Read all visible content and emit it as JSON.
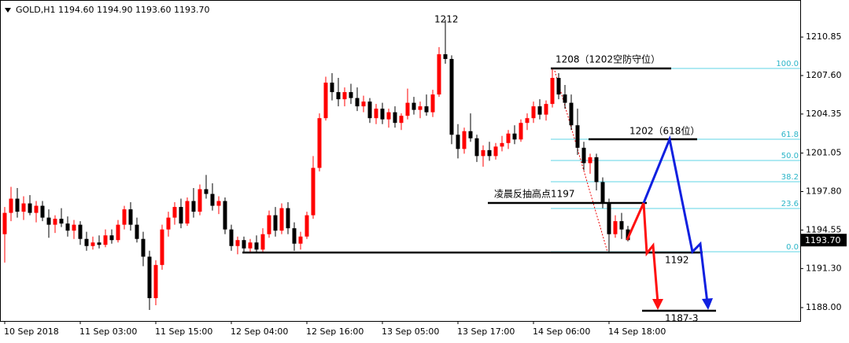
{
  "chart_data": {
    "type": "candlestick",
    "header": "GOLD,H1  1194.60 1194.90 1193.60 1193.70",
    "categories": [
      "10 Sep 2018",
      null,
      null,
      null,
      null,
      null,
      null,
      null,
      null,
      null,
      null,
      null,
      "11 Sep 03:00",
      null,
      null,
      null,
      null,
      null,
      null,
      null,
      null,
      null,
      null,
      null,
      "11 Sep 15:00",
      null,
      null,
      null,
      null,
      null,
      null,
      null,
      null,
      null,
      null,
      null,
      "12 Sep 04:00",
      null,
      null,
      null,
      null,
      null,
      null,
      null,
      null,
      null,
      null,
      null,
      "12 Sep 16:00",
      null,
      null,
      null,
      null,
      null,
      null,
      null,
      null,
      null,
      null,
      null,
      "13 Sep 05:00",
      null,
      null,
      null,
      null,
      null,
      null,
      null,
      null,
      null,
      null,
      null,
      "13 Sep 17:00",
      null,
      null,
      null,
      null,
      null,
      null,
      null,
      null,
      null,
      null,
      null,
      "14 Sep 06:00",
      null,
      null,
      null,
      null,
      null,
      null,
      null,
      null,
      null,
      null,
      null,
      "14 Sep 18:00",
      null,
      null,
      null
    ],
    "ohlc": [
      [
        1194.2,
        1196.5,
        1191.8,
        1196.0
      ],
      [
        1196.0,
        1198.2,
        1195.3,
        1197.2
      ],
      [
        1197.2,
        1198.1,
        1195.6,
        1196.1
      ],
      [
        1196.1,
        1197.4,
        1195.4,
        1196.8
      ],
      [
        1196.8,
        1197.5,
        1195.8,
        1196.0
      ],
      [
        1196.0,
        1197.0,
        1195.2,
        1196.6
      ],
      [
        1196.6,
        1197.0,
        1195.3,
        1195.6
      ],
      [
        1195.6,
        1196.3,
        1193.9,
        1195.0
      ],
      [
        1195.0,
        1195.8,
        1194.3,
        1195.5
      ],
      [
        1195.5,
        1196.4,
        1194.8,
        1195.1
      ],
      [
        1195.1,
        1195.7,
        1194.0,
        1194.5
      ],
      [
        1194.5,
        1195.4,
        1193.8,
        1195.0
      ],
      [
        1195.0,
        1195.3,
        1193.3,
        1193.8
      ],
      [
        1193.8,
        1194.4,
        1192.8,
        1193.2
      ],
      [
        1193.2,
        1194.0,
        1192.9,
        1193.5
      ],
      [
        1193.5,
        1194.1,
        1193.0,
        1193.3
      ],
      [
        1193.3,
        1194.6,
        1193.1,
        1194.1
      ],
      [
        1194.1,
        1194.6,
        1193.4,
        1193.7
      ],
      [
        1193.7,
        1195.4,
        1193.5,
        1195.0
      ],
      [
        1195.0,
        1196.6,
        1194.6,
        1196.3
      ],
      [
        1196.3,
        1196.9,
        1194.5,
        1195.0
      ],
      [
        1195.0,
        1195.6,
        1193.5,
        1193.8
      ],
      [
        1193.8,
        1194.4,
        1191.5,
        1192.3
      ],
      [
        1192.3,
        1192.8,
        1187.8,
        1188.8
      ],
      [
        1188.8,
        1192.0,
        1188.2,
        1191.6
      ],
      [
        1191.6,
        1195.0,
        1191.2,
        1194.6
      ],
      [
        1194.6,
        1196.1,
        1194.0,
        1195.6
      ],
      [
        1195.6,
        1196.9,
        1195.0,
        1196.5
      ],
      [
        1196.5,
        1197.2,
        1194.7,
        1195.1
      ],
      [
        1195.1,
        1197.3,
        1194.9,
        1197.0
      ],
      [
        1197.0,
        1198.1,
        1195.6,
        1196.1
      ],
      [
        1196.1,
        1198.4,
        1195.8,
        1198.0
      ],
      [
        1198.0,
        1199.2,
        1197.2,
        1197.6
      ],
      [
        1197.6,
        1198.5,
        1196.2,
        1196.6
      ],
      [
        1196.6,
        1197.4,
        1195.9,
        1197.0
      ],
      [
        1197.0,
        1197.3,
        1194.2,
        1194.6
      ],
      [
        1194.6,
        1195.0,
        1192.8,
        1193.2
      ],
      [
        1193.2,
        1194.0,
        1192.5,
        1193.7
      ],
      [
        1193.7,
        1194.0,
        1192.7,
        1193.0
      ],
      [
        1193.0,
        1193.8,
        1192.6,
        1193.5
      ],
      [
        1193.5,
        1194.1,
        1192.6,
        1192.9
      ],
      [
        1192.9,
        1194.7,
        1192.6,
        1194.2
      ],
      [
        1194.2,
        1196.2,
        1193.9,
        1195.8
      ],
      [
        1195.8,
        1196.5,
        1194.0,
        1194.5
      ],
      [
        1194.5,
        1196.8,
        1194.2,
        1196.4
      ],
      [
        1196.4,
        1196.9,
        1194.2,
        1194.7
      ],
      [
        1194.7,
        1195.2,
        1192.8,
        1193.4
      ],
      [
        1193.4,
        1194.4,
        1192.9,
        1194.0
      ],
      [
        1194.0,
        1196.1,
        1193.8,
        1195.8
      ],
      [
        1195.8,
        1200.8,
        1195.5,
        1199.8
      ],
      [
        1199.8,
        1204.4,
        1199.5,
        1204.0
      ],
      [
        1204.0,
        1207.5,
        1203.8,
        1207.0
      ],
      [
        1207.0,
        1207.8,
        1205.5,
        1206.2
      ],
      [
        1206.2,
        1207.4,
        1205.0,
        1205.6
      ],
      [
        1205.6,
        1206.6,
        1205.0,
        1206.2
      ],
      [
        1206.2,
        1206.9,
        1205.2,
        1205.7
      ],
      [
        1205.7,
        1206.6,
        1204.6,
        1205.0
      ],
      [
        1205.0,
        1205.9,
        1204.5,
        1205.4
      ],
      [
        1205.4,
        1205.7,
        1203.6,
        1204.0
      ],
      [
        1204.0,
        1205.2,
        1203.5,
        1204.8
      ],
      [
        1204.8,
        1205.3,
        1203.5,
        1203.9
      ],
      [
        1203.9,
        1204.8,
        1203.2,
        1204.5
      ],
      [
        1204.5,
        1205.0,
        1203.2,
        1203.6
      ],
      [
        1203.6,
        1204.4,
        1203.0,
        1204.2
      ],
      [
        1204.2,
        1206.5,
        1203.9,
        1205.3
      ],
      [
        1205.3,
        1205.8,
        1204.3,
        1204.7
      ],
      [
        1204.7,
        1205.4,
        1204.0,
        1205.0
      ],
      [
        1205.0,
        1206.0,
        1204.2,
        1204.5
      ],
      [
        1204.5,
        1206.4,
        1204.1,
        1206.0
      ],
      [
        1206.0,
        1210.0,
        1205.8,
        1209.4
      ],
      [
        1209.4,
        1212.3,
        1208.6,
        1209.0
      ],
      [
        1209.0,
        1209.3,
        1201.8,
        1202.6
      ],
      [
        1202.6,
        1203.5,
        1200.6,
        1201.4
      ],
      [
        1201.4,
        1203.2,
        1201.0,
        1202.9
      ],
      [
        1202.9,
        1204.4,
        1202.0,
        1202.3
      ],
      [
        1202.3,
        1202.6,
        1200.3,
        1200.8
      ],
      [
        1200.8,
        1201.7,
        1199.9,
        1201.3
      ],
      [
        1201.3,
        1202.0,
        1200.4,
        1200.8
      ],
      [
        1200.8,
        1201.9,
        1200.5,
        1201.6
      ],
      [
        1201.6,
        1202.5,
        1201.2,
        1201.9
      ],
      [
        1201.9,
        1203.0,
        1201.4,
        1202.7
      ],
      [
        1202.7,
        1203.4,
        1201.8,
        1202.2
      ],
      [
        1202.2,
        1203.9,
        1202.0,
        1203.6
      ],
      [
        1203.6,
        1204.4,
        1203.0,
        1204.0
      ],
      [
        1204.0,
        1205.4,
        1203.6,
        1205.0
      ],
      [
        1205.0,
        1205.6,
        1203.9,
        1204.3
      ],
      [
        1204.3,
        1205.5,
        1203.8,
        1205.2
      ],
      [
        1205.2,
        1208.2,
        1204.9,
        1207.4
      ],
      [
        1207.4,
        1207.8,
        1205.6,
        1206.0
      ],
      [
        1206.0,
        1206.8,
        1204.8,
        1205.3
      ],
      [
        1205.3,
        1206.0,
        1203.0,
        1203.4
      ],
      [
        1203.4,
        1204.8,
        1200.9,
        1201.5
      ],
      [
        1201.5,
        1202.0,
        1199.6,
        1200.2
      ],
      [
        1200.2,
        1201.0,
        1199.3,
        1200.7
      ],
      [
        1200.7,
        1201.0,
        1197.9,
        1198.6
      ],
      [
        1198.6,
        1199.0,
        1196.4,
        1196.9
      ],
      [
        1196.9,
        1197.2,
        1192.7,
        1194.2
      ],
      [
        1194.2,
        1195.8,
        1193.9,
        1195.3
      ],
      [
        1195.3,
        1196.0,
        1193.8,
        1194.6
      ],
      [
        1194.6,
        1194.9,
        1193.6,
        1193.7
      ]
    ],
    "up_color": "#ff0000",
    "down_color": "#000000",
    "ylim": [
      1186.87,
      1213.98
    ],
    "yticks": [
      1210.85,
      {
        "value": 1207.6,
        "label": "1207.60"
      },
      1204.35,
      1201.05,
      {
        "value": 1197.8,
        "label": "1197.80"
      },
      1194.55,
      {
        "value": 1191.3,
        "label": "1191.30"
      },
      {
        "value": 1188.0,
        "label": "1188.00"
      }
    ],
    "current_price": {
      "value": 1193.7,
      "label": "1193.70"
    },
    "fib_levels": [
      "100.0",
      "61.8",
      "50.0",
      "38.2",
      "23.6",
      "0.0"
    ],
    "annotations": [
      "1212",
      "1208（1202空防守位）",
      "1202（618位）",
      "凌晨反抽高点1197",
      "1192",
      "1187-3"
    ]
  }
}
